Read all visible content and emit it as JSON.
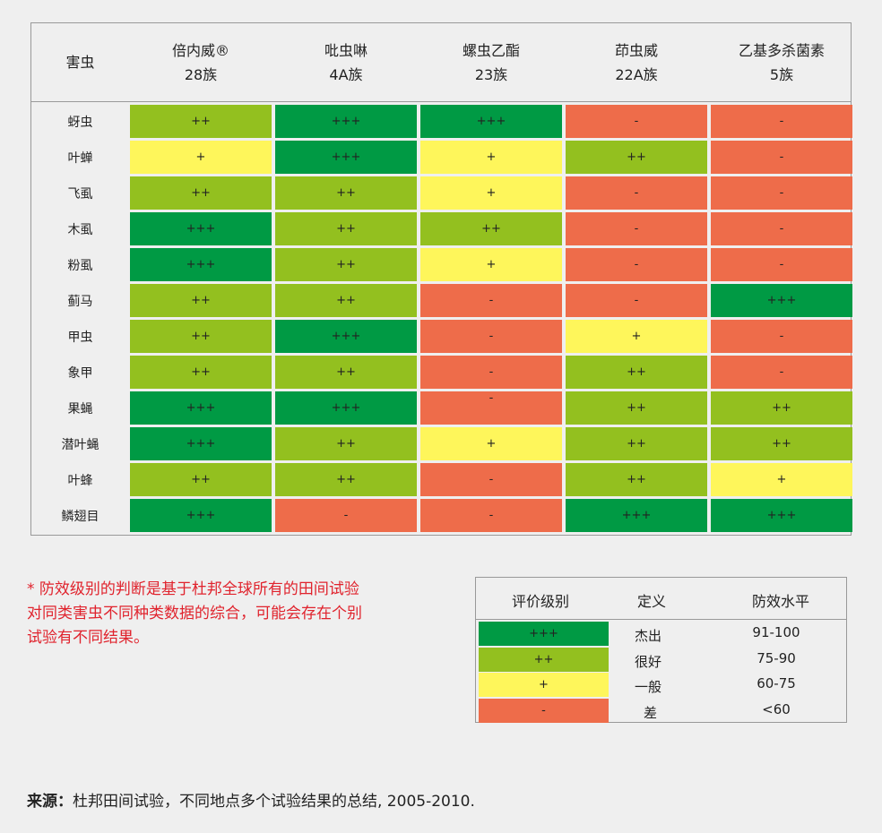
{
  "colors": {
    "+++": "#009a44",
    "++": "#93c01f",
    "+": "#fef65b",
    "-": "#ee6c4a"
  },
  "table": {
    "pest_header": "害虫",
    "columns": [
      {
        "name": "倍内威®",
        "group": "28族"
      },
      {
        "name": "吡虫啉",
        "group": "4A族"
      },
      {
        "name": "螺虫乙酯",
        "group": "23族"
      },
      {
        "name": "茚虫威",
        "group": "22A族"
      },
      {
        "name": "乙基多杀菌素",
        "group": "5族"
      }
    ],
    "rows": [
      {
        "pest": "蚜虫",
        "ratings": [
          "++",
          "+++",
          "+++",
          "-",
          "-"
        ]
      },
      {
        "pest": "叶蝉",
        "ratings": [
          "+",
          "+++",
          "+",
          "++",
          "-"
        ]
      },
      {
        "pest": "飞虱",
        "ratings": [
          "++",
          "++",
          "+",
          "-",
          "-"
        ]
      },
      {
        "pest": "木虱",
        "ratings": [
          "+++",
          "++",
          "++",
          "-",
          "-"
        ]
      },
      {
        "pest": "粉虱",
        "ratings": [
          "+++",
          "++",
          "+",
          "-",
          "-"
        ]
      },
      {
        "pest": "蓟马",
        "ratings": [
          "++",
          "++",
          "-",
          "-",
          "+++"
        ]
      },
      {
        "pest": "甲虫",
        "ratings": [
          "++",
          "+++",
          "-",
          "+",
          "-"
        ]
      },
      {
        "pest": "象甲",
        "ratings": [
          "++",
          "++",
          "-",
          "++",
          "-"
        ]
      },
      {
        "pest": "果蝇",
        "ratings": [
          "+++",
          "+++",
          "-",
          "++",
          "++"
        ]
      },
      {
        "pest": "潜叶蝇",
        "ratings": [
          "+++",
          "++",
          "+",
          "++",
          "++"
        ]
      },
      {
        "pest": "叶蜂",
        "ratings": [
          "++",
          "++",
          "-",
          "++",
          "+"
        ]
      },
      {
        "pest": "鳞翅目",
        "ratings": [
          "+++",
          "-",
          "-",
          "+++",
          "+++"
        ]
      }
    ]
  },
  "note": "* 防效级别的判断是基于杜邦全球所有的田间试验对同类害虫不同种类数据的综合，可能会存在个别试验有不同结果。",
  "legend": {
    "headers": [
      "评价级别",
      "定义",
      "防效水平"
    ],
    "items": [
      {
        "rating": "+++",
        "definition": "杰出",
        "level": "91-100"
      },
      {
        "rating": "++",
        "definition": "很好",
        "level": "75-90"
      },
      {
        "rating": "+",
        "definition": "一般",
        "level": "60-75"
      },
      {
        "rating": "-",
        "definition": "差",
        "level": "<60"
      }
    ]
  },
  "source": {
    "label": "来源：",
    "text": "杜邦田间试验，不同地点多个试验结果的总结, 2005-2010."
  }
}
